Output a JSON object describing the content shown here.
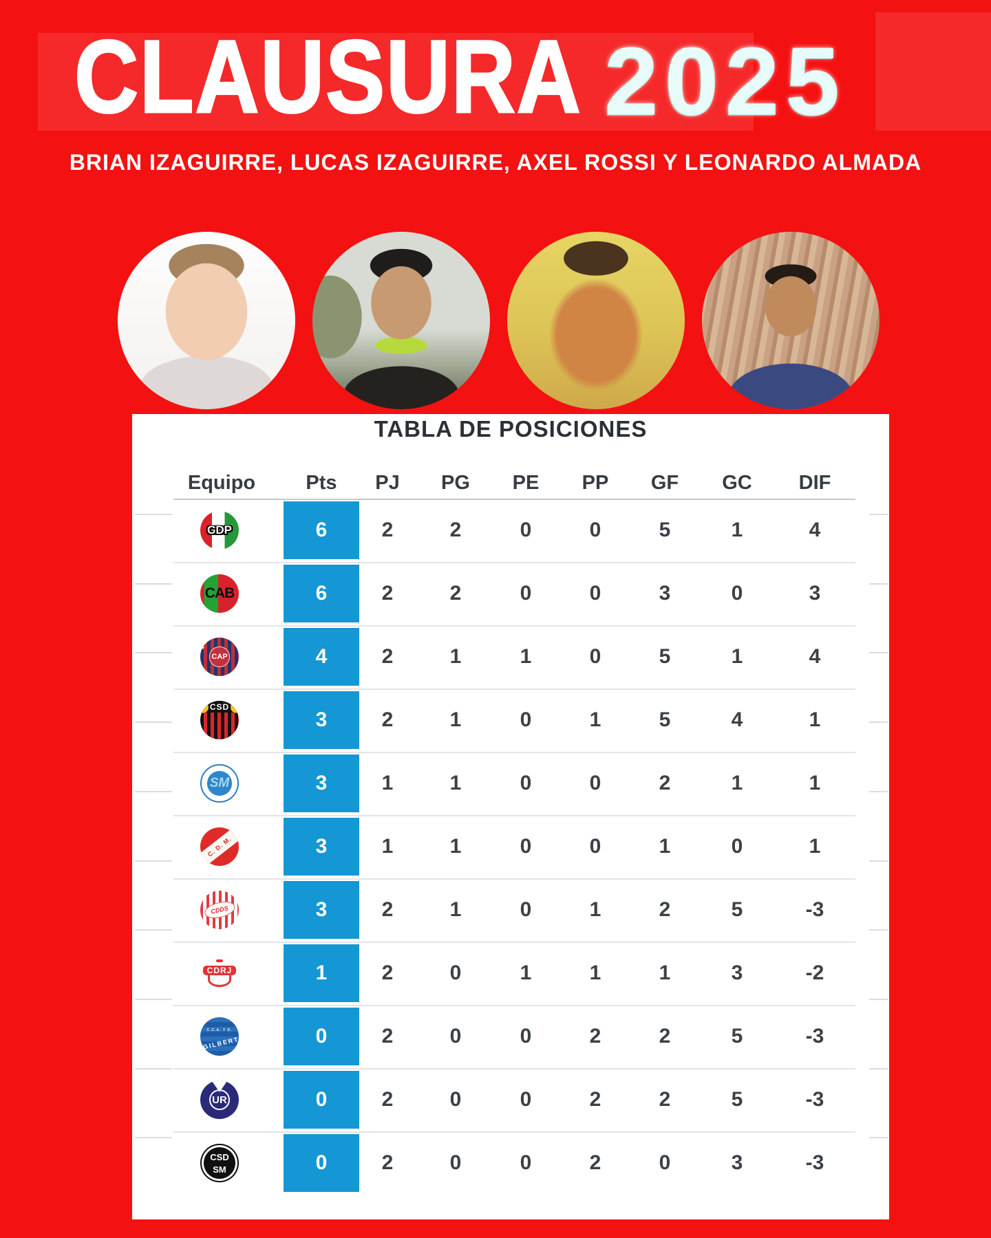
{
  "header": {
    "title": "CLAUSURA",
    "year": "2025",
    "subtitle": "BRIAN IZAGUIRRE, LUCAS IZAGUIRRE, AXEL ROSSI Y LEONARDO ALMADA"
  },
  "chart_data": {
    "type": "table",
    "title": "TABLA DE POSICIONES",
    "columns": [
      "Equipo",
      "Pts",
      "PJ",
      "PG",
      "PE",
      "PP",
      "GF",
      "GC",
      "DIF"
    ],
    "rows": [
      {
        "logo": "cdp",
        "m1": "CDP",
        "m2": "",
        "pts": 6,
        "stats": [
          2,
          2,
          0,
          0,
          5,
          1,
          4
        ]
      },
      {
        "logo": "cab",
        "m1": "CAB",
        "m2": "",
        "pts": 6,
        "stats": [
          2,
          2,
          0,
          0,
          3,
          0,
          3
        ]
      },
      {
        "logo": "cap",
        "m1": "CAP",
        "m2": "",
        "pts": 4,
        "stats": [
          2,
          1,
          1,
          0,
          5,
          1,
          4
        ]
      },
      {
        "logo": "csd",
        "m1": "CSD",
        "m2": "",
        "pts": 3,
        "stats": [
          2,
          1,
          0,
          1,
          5,
          4,
          1
        ]
      },
      {
        "logo": "sm",
        "m1": "SM",
        "m2": "",
        "pts": 3,
        "stats": [
          1,
          1,
          0,
          0,
          2,
          1,
          1
        ]
      },
      {
        "logo": "cdm",
        "m1": "C. D. M.",
        "m2": "",
        "pts": 3,
        "stats": [
          1,
          1,
          0,
          0,
          1,
          0,
          1
        ]
      },
      {
        "logo": "cdds",
        "m1": "CDDS",
        "m2": "",
        "pts": 3,
        "stats": [
          2,
          1,
          0,
          1,
          2,
          5,
          -3
        ]
      },
      {
        "logo": "cdrj",
        "m1": "CDRJ",
        "m2": "",
        "pts": 1,
        "stats": [
          2,
          0,
          1,
          1,
          1,
          3,
          -2
        ]
      },
      {
        "logo": "gilbert",
        "m1": "GILBERT",
        "m2": "C.C.A. Y D.",
        "pts": 0,
        "stats": [
          2,
          0,
          0,
          2,
          2,
          5,
          -3
        ]
      },
      {
        "logo": "ur",
        "m1": "UR",
        "m2": "",
        "pts": 0,
        "stats": [
          2,
          0,
          0,
          2,
          2,
          5,
          -3
        ]
      },
      {
        "logo": "csdsm",
        "m1": "CSD",
        "m2": "SM",
        "pts": 0,
        "stats": [
          2,
          0,
          0,
          2,
          0,
          3,
          -3
        ]
      }
    ]
  },
  "colors": {
    "background_red": "#f41111",
    "points_blue": "#1497d4",
    "year_cyan": "#e7fbf9",
    "text_dark": "#3b4147"
  }
}
